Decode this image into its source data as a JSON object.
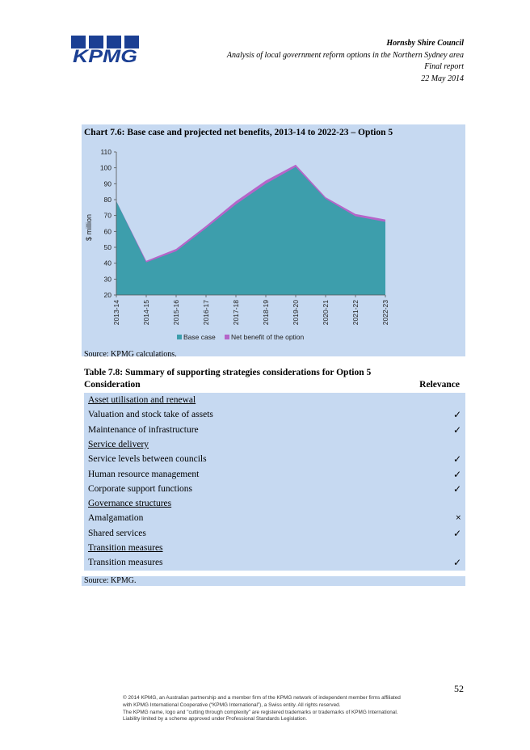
{
  "header": {
    "org": "Hornsby Shire Council",
    "subtitle": "Analysis of local government reform options in the Northern Sydney area",
    "report_type": "Final report",
    "date": "22 May 2014"
  },
  "logo_text": "KPMG",
  "chart_title": "Chart 7.6: Base case and projected net benefits, 2013-14 to 2022-23 – Option 5",
  "chart_source": "Source: KPMG calculations.",
  "colors": {
    "base_case": "#3d9eac",
    "net_benefit": "#b565c9",
    "panel": "#c6d9f1"
  },
  "chart_data": {
    "type": "area",
    "title": "",
    "ylabel": "$ million",
    "xlabel": "",
    "ylim": [
      20,
      110
    ],
    "yticks": [
      "20",
      "30",
      "40",
      "50",
      "60",
      "70",
      "80",
      "90",
      "100",
      "110"
    ],
    "categories": [
      "2013-14",
      "2014-15",
      "2015-16",
      "2016-17",
      "2017-18",
      "2018-19",
      "2019-20",
      "2020-21",
      "2021-22",
      "2022-23"
    ],
    "series": [
      {
        "name": "Base case",
        "values": [
          79,
          40.5,
          47.5,
          62,
          77,
          90,
          100.5,
          80.5,
          69.5,
          66
        ]
      },
      {
        "name": "Net benefit of the option",
        "values": [
          79,
          41.5,
          49,
          63.5,
          79,
          92,
          102,
          81.5,
          71,
          67.5
        ]
      }
    ],
    "legend_position": "bottom",
    "grid": false
  },
  "table": {
    "title": "Table 7.8: Summary of supporting strategies considerations for Option 5",
    "headers": [
      "Consideration",
      "Relevance"
    ],
    "rows": [
      {
        "label": "Asset utilisation and renewal",
        "group": true,
        "mark": ""
      },
      {
        "label": "Valuation and stock take of assets",
        "group": false,
        "mark": "✓"
      },
      {
        "label": "Maintenance of infrastructure",
        "group": false,
        "mark": "✓"
      },
      {
        "label": "Service delivery",
        "group": true,
        "mark": ""
      },
      {
        "label": "Service levels between councils",
        "group": false,
        "mark": "✓"
      },
      {
        "label": "Human resource management",
        "group": false,
        "mark": "✓"
      },
      {
        "label": "Corporate support functions",
        "group": false,
        "mark": "✓"
      },
      {
        "label": "Governance structures",
        "group": true,
        "mark": ""
      },
      {
        "label": "Amalgamation",
        "group": false,
        "mark": "×"
      },
      {
        "label": "Shared services",
        "group": false,
        "mark": "✓"
      },
      {
        "label": "Transition measures",
        "group": true,
        "mark": ""
      },
      {
        "label": "Transition measures",
        "group": false,
        "mark": "✓"
      }
    ],
    "source": "Source: KPMG."
  },
  "page_number": "52",
  "footer": [
    "© 2014 KPMG, an Australian partnership and a member firm of the KPMG network of independent member firms affiliated",
    "with KPMG International Cooperative (“KPMG International”), a Swiss entity. All rights reserved.",
    "The KPMG name, logo and \"cutting through complexity\" are registered trademarks or trademarks of KPMG International.",
    "Liability limited by a scheme approved under Professional Standards Legislation."
  ]
}
